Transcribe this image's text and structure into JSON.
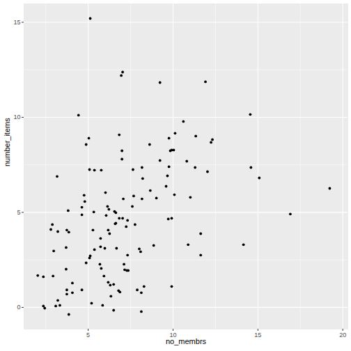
{
  "chart_data": {
    "type": "scatter",
    "x_label": "no_membrs",
    "y_label": "number_items",
    "x": [
      2.03,
      2.36,
      2.36,
      2.44,
      2.8,
      2.89,
      2.93,
      2.97,
      3.09,
      3.17,
      3.21,
      3.21,
      3.33,
      3.7,
      3.7,
      3.74,
      3.74,
      3.74,
      3.82,
      3.86,
      3.86,
      4.07,
      4.07,
      4.43,
      4.63,
      4.63,
      4.63,
      4.76,
      4.8,
      4.88,
      4.88,
      5.04,
      5.08,
      5.08,
      5.12,
      5.12,
      5.2,
      5.28,
      5.33,
      5.37,
      5.37,
      5.69,
      5.73,
      5.77,
      5.77,
      5.73,
      5.85,
      5.93,
      5.98,
      6.02,
      6.06,
      6.14,
      6.18,
      6.18,
      6.22,
      6.26,
      6.3,
      6.34,
      6.5,
      6.5,
      6.55,
      6.59,
      6.63,
      6.63,
      6.67,
      6.79,
      6.83,
      6.83,
      6.87,
      6.95,
      6.99,
      6.99,
      7.03,
      7.03,
      7.07,
      7.11,
      7.15,
      7.24,
      7.28,
      7.32,
      7.32,
      7.36,
      7.6,
      7.64,
      7.68,
      7.76,
      7.89,
      8.01,
      8.09,
      8.13,
      8.13,
      8.17,
      8.17,
      8.21,
      8.29,
      8.62,
      8.66,
      8.86,
      9.02,
      9.23,
      9.23,
      9.59,
      9.67,
      9.72,
      9.76,
      9.76,
      9.84,
      9.92,
      9.92,
      9.92,
      10.04,
      10.08,
      10.12,
      10.61,
      10.81,
      10.89,
      11.02,
      11.3,
      11.34,
      11.63,
      11.63,
      11.91,
      12.03,
      12.24,
      12.32,
      14.15,
      14.55,
      14.59,
      15.08,
      16.91,
      19.23
    ],
    "values": [
      1.68,
      1.61,
      0.07,
      -0.04,
      4.1,
      4.36,
      1.65,
      2.97,
      0.07,
      6.89,
      0.37,
      3.99,
      0.11,
      2.01,
      3.15,
      4.07,
      0.92,
      0.7,
      5.09,
      3.96,
      -0.37,
      1.28,
      0.77,
      10.11,
      0.92,
      4.87,
      5.27,
      5.9,
      5.57,
      2.34,
      8.57,
      8.9,
      7.25,
      2.6,
      2.71,
      15.2,
      0.22,
      4.07,
      5.02,
      3.04,
      7.22,
      2.27,
      3.63,
      7.22,
      2.05,
      3.19,
      0.11,
      1.65,
      3.11,
      6.04,
      4.84,
      5.31,
      4.07,
      1.32,
      5.16,
      3.88,
      1.17,
      0.59,
      1.21,
      -0.15,
      5.05,
      4.4,
      4.98,
      4.43,
      3.11,
      0.88,
      9.08,
      4.69,
      0.81,
      12.2,
      8.24,
      7.8,
      12.38,
      4.69,
      5.71,
      2.27,
      1.98,
      4.25,
      1.94,
      2.75,
      4.58,
      1.94,
      5.31,
      7.25,
      5.86,
      4.36,
      0.92,
      3.08,
      2.93,
      -0.22,
      0.77,
      5.71,
      7.36,
      6.78,
      1.1,
      8.57,
      6.15,
      3.26,
      5.75,
      11.83,
      7.73,
      6.37,
      6.92,
      4.65,
      7.4,
      8.9,
      8.24,
      4.69,
      8.28,
      1.1,
      8.28,
      5.93,
      9.16,
      9.78,
      7.69,
      3.3,
      5.79,
      7.36,
      9.01,
      3.88,
      2.75,
      11.87,
      7.14,
      8.68,
      8.83,
      3.3,
      10.15,
      7.36,
      6.81,
      4.91,
      6.26
    ],
    "color": "#000000",
    "xlim": [
      1.22,
      20.3
    ],
    "ylim": [
      -1.14,
      15.97
    ],
    "xticks": [
      5,
      10,
      15,
      20
    ],
    "yticks": [
      0,
      5,
      10,
      15
    ],
    "grid": true
  }
}
